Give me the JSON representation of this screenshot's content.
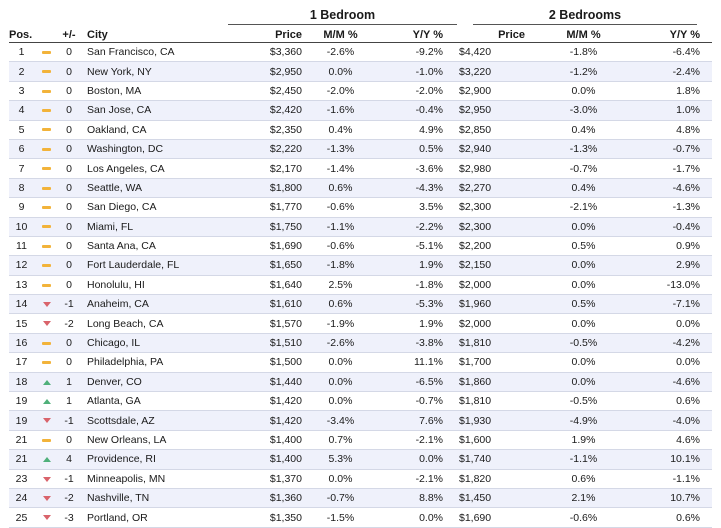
{
  "groups": {
    "one_bedroom": "1 Bedroom",
    "two_bedrooms": "2 Bedrooms"
  },
  "headers": {
    "pos": "Pos.",
    "change": "+/-",
    "city": "City",
    "price1": "Price",
    "mm1": "M/M %",
    "yy1": "Y/Y %",
    "price2": "Price",
    "mm2": "M/M %",
    "yy2": "Y/Y %"
  },
  "colors": {
    "flat": "#f2b33a",
    "down": "#d9636b",
    "up": "#4fb07a",
    "row_alt": "#eff1fb"
  },
  "rows": [
    {
      "pos": "1",
      "trend": "flat",
      "change": "0",
      "city": "San Francisco, CA",
      "price1": "$3,360",
      "mm1": "-2.6%",
      "yy1": "-9.2%",
      "price2": "$4,420",
      "mm2": "-1.8%",
      "yy2": "-6.4%"
    },
    {
      "pos": "2",
      "trend": "flat",
      "change": "0",
      "city": "New York, NY",
      "price1": "$2,950",
      "mm1": "0.0%",
      "yy1": "-1.0%",
      "price2": "$3,220",
      "mm2": "-1.2%",
      "yy2": "-2.4%"
    },
    {
      "pos": "3",
      "trend": "flat",
      "change": "0",
      "city": "Boston, MA",
      "price1": "$2,450",
      "mm1": "-2.0%",
      "yy1": "-2.0%",
      "price2": "$2,900",
      "mm2": "0.0%",
      "yy2": "1.8%"
    },
    {
      "pos": "4",
      "trend": "flat",
      "change": "0",
      "city": "San Jose, CA",
      "price1": "$2,420",
      "mm1": "-1.6%",
      "yy1": "-0.4%",
      "price2": "$2,950",
      "mm2": "-3.0%",
      "yy2": "1.0%"
    },
    {
      "pos": "5",
      "trend": "flat",
      "change": "0",
      "city": "Oakland, CA",
      "price1": "$2,350",
      "mm1": "0.4%",
      "yy1": "4.9%",
      "price2": "$2,850",
      "mm2": "0.4%",
      "yy2": "4.8%"
    },
    {
      "pos": "6",
      "trend": "flat",
      "change": "0",
      "city": "Washington, DC",
      "price1": "$2,220",
      "mm1": "-1.3%",
      "yy1": "0.5%",
      "price2": "$2,940",
      "mm2": "-1.3%",
      "yy2": "-0.7%"
    },
    {
      "pos": "7",
      "trend": "flat",
      "change": "0",
      "city": "Los Angeles, CA",
      "price1": "$2,170",
      "mm1": "-1.4%",
      "yy1": "-3.6%",
      "price2": "$2,980",
      "mm2": "-0.7%",
      "yy2": "-1.7%"
    },
    {
      "pos": "8",
      "trend": "flat",
      "change": "0",
      "city": "Seattle, WA",
      "price1": "$1,800",
      "mm1": "0.6%",
      "yy1": "-4.3%",
      "price2": "$2,270",
      "mm2": "0.4%",
      "yy2": "-4.6%"
    },
    {
      "pos": "9",
      "trend": "flat",
      "change": "0",
      "city": "San Diego, CA",
      "price1": "$1,770",
      "mm1": "-0.6%",
      "yy1": "3.5%",
      "price2": "$2,300",
      "mm2": "-2.1%",
      "yy2": "-1.3%"
    },
    {
      "pos": "10",
      "trend": "flat",
      "change": "0",
      "city": "Miami, FL",
      "price1": "$1,750",
      "mm1": "-1.1%",
      "yy1": "-2.2%",
      "price2": "$2,300",
      "mm2": "0.0%",
      "yy2": "-0.4%"
    },
    {
      "pos": "11",
      "trend": "flat",
      "change": "0",
      "city": "Santa Ana, CA",
      "price1": "$1,690",
      "mm1": "-0.6%",
      "yy1": "-5.1%",
      "price2": "$2,200",
      "mm2": "0.5%",
      "yy2": "0.9%"
    },
    {
      "pos": "12",
      "trend": "flat",
      "change": "0",
      "city": "Fort Lauderdale, FL",
      "price1": "$1,650",
      "mm1": "-1.8%",
      "yy1": "1.9%",
      "price2": "$2,150",
      "mm2": "0.0%",
      "yy2": "2.9%"
    },
    {
      "pos": "13",
      "trend": "flat",
      "change": "0",
      "city": "Honolulu, HI",
      "price1": "$1,640",
      "mm1": "2.5%",
      "yy1": "-1.8%",
      "price2": "$2,000",
      "mm2": "0.0%",
      "yy2": "-13.0%"
    },
    {
      "pos": "14",
      "trend": "down",
      "change": "-1",
      "city": "Anaheim, CA",
      "price1": "$1,610",
      "mm1": "0.6%",
      "yy1": "-5.3%",
      "price2": "$1,960",
      "mm2": "0.5%",
      "yy2": "-7.1%"
    },
    {
      "pos": "15",
      "trend": "down",
      "change": "-2",
      "city": "Long Beach, CA",
      "price1": "$1,570",
      "mm1": "-1.9%",
      "yy1": "1.9%",
      "price2": "$2,000",
      "mm2": "0.0%",
      "yy2": "0.0%"
    },
    {
      "pos": "16",
      "trend": "flat",
      "change": "0",
      "city": "Chicago, IL",
      "price1": "$1,510",
      "mm1": "-2.6%",
      "yy1": "-3.8%",
      "price2": "$1,810",
      "mm2": "-0.5%",
      "yy2": "-4.2%"
    },
    {
      "pos": "17",
      "trend": "flat",
      "change": "0",
      "city": "Philadelphia, PA",
      "price1": "$1,500",
      "mm1": "0.0%",
      "yy1": "11.1%",
      "price2": "$1,700",
      "mm2": "0.0%",
      "yy2": "0.0%"
    },
    {
      "pos": "18",
      "trend": "up",
      "change": "1",
      "city": "Denver, CO",
      "price1": "$1,440",
      "mm1": "0.0%",
      "yy1": "-6.5%",
      "price2": "$1,860",
      "mm2": "0.0%",
      "yy2": "-4.6%"
    },
    {
      "pos": "19",
      "trend": "up",
      "change": "1",
      "city": "Atlanta, GA",
      "price1": "$1,420",
      "mm1": "0.0%",
      "yy1": "-0.7%",
      "price2": "$1,810",
      "mm2": "-0.5%",
      "yy2": "0.6%"
    },
    {
      "pos": "19",
      "trend": "down",
      "change": "-1",
      "city": "Scottsdale, AZ",
      "price1": "$1,420",
      "mm1": "-3.4%",
      "yy1": "7.6%",
      "price2": "$1,930",
      "mm2": "-4.9%",
      "yy2": "-4.0%"
    },
    {
      "pos": "21",
      "trend": "flat",
      "change": "0",
      "city": "New Orleans, LA",
      "price1": "$1,400",
      "mm1": "0.7%",
      "yy1": "-2.1%",
      "price2": "$1,600",
      "mm2": "1.9%",
      "yy2": "4.6%"
    },
    {
      "pos": "21",
      "trend": "up",
      "change": "4",
      "city": "Providence, RI",
      "price1": "$1,400",
      "mm1": "5.3%",
      "yy1": "0.0%",
      "price2": "$1,740",
      "mm2": "-1.1%",
      "yy2": "10.1%"
    },
    {
      "pos": "23",
      "trend": "down",
      "change": "-1",
      "city": "Minneapolis, MN",
      "price1": "$1,370",
      "mm1": "0.0%",
      "yy1": "-2.1%",
      "price2": "$1,820",
      "mm2": "0.6%",
      "yy2": "-1.1%"
    },
    {
      "pos": "24",
      "trend": "down",
      "change": "-2",
      "city": "Nashville, TN",
      "price1": "$1,360",
      "mm1": "-0.7%",
      "yy1": "8.8%",
      "price2": "$1,450",
      "mm2": "2.1%",
      "yy2": "10.7%"
    },
    {
      "pos": "25",
      "trend": "down",
      "change": "-3",
      "city": "Portland, OR",
      "price1": "$1,350",
      "mm1": "-1.5%",
      "yy1": "0.0%",
      "price2": "$1,690",
      "mm2": "-0.6%",
      "yy2": "0.6%"
    }
  ]
}
